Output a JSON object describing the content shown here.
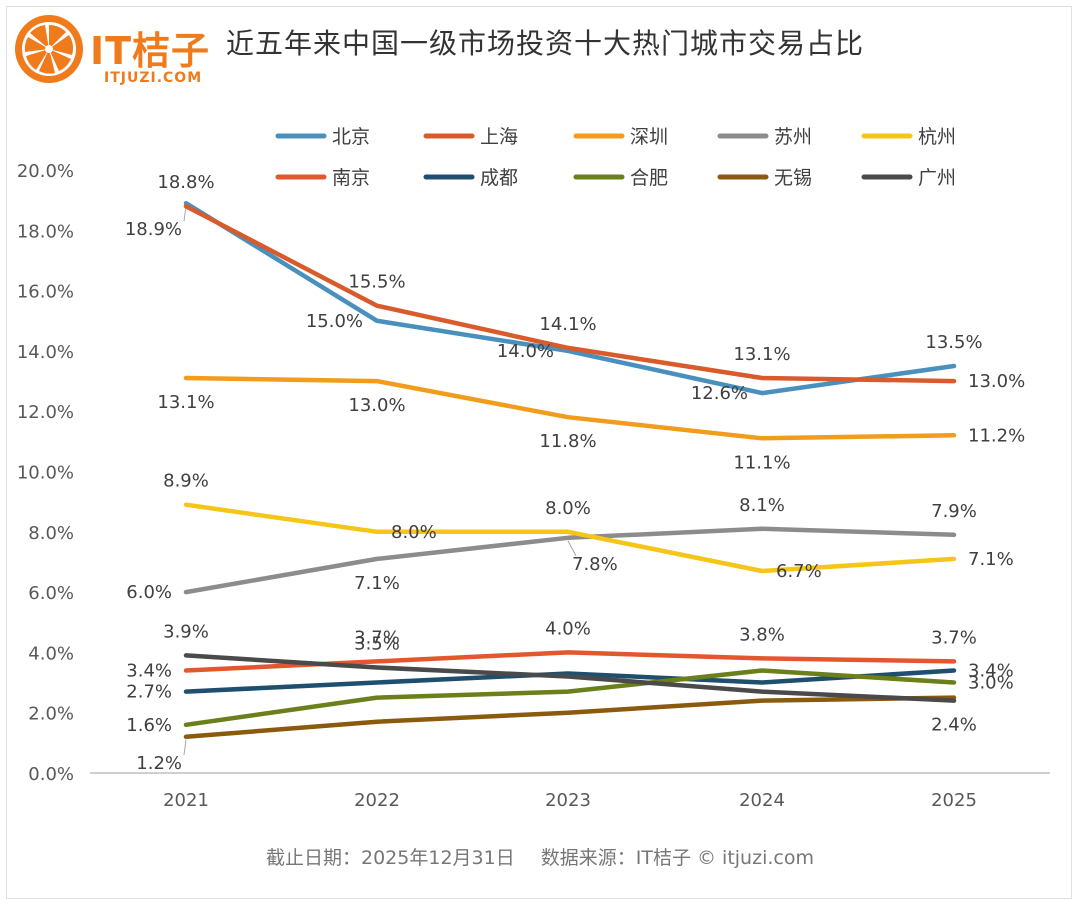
{
  "header": {
    "brand": "IT桔子",
    "domain": "ITJUZI.COM",
    "title": "近五年来中国一级市场投资十大热门城市交易占比"
  },
  "footer": {
    "cutoff": "截止日期：2025年12月31日",
    "source": "数据来源：IT桔子 © itjuzi.com"
  },
  "colors": {
    "brand": "#f07b1d",
    "grid": "#d9d9d9",
    "axis_text": "#595959"
  },
  "chart_data": {
    "type": "line",
    "title": "近五年来中国一级市场投资十大热门城市交易占比",
    "xlabel": "",
    "ylabel": "",
    "ylim": [
      0,
      20
    ],
    "yticks": [
      "0.0%",
      "2.0%",
      "4.0%",
      "6.0%",
      "8.0%",
      "10.0%",
      "12.0%",
      "14.0%",
      "16.0%",
      "18.0%",
      "20.0%"
    ],
    "x": [
      "2021",
      "2022",
      "2023",
      "2024",
      "2025"
    ],
    "legend_position": "top",
    "series": [
      {
        "name": "北京",
        "color": "#4a90bf",
        "values": [
          18.9,
          15.0,
          14.0,
          12.6,
          13.5
        ]
      },
      {
        "name": "上海",
        "color": "#d95a2b",
        "values": [
          18.8,
          15.5,
          14.1,
          13.1,
          13.0
        ]
      },
      {
        "name": "深圳",
        "color": "#f29c1b",
        "values": [
          13.1,
          13.0,
          11.8,
          11.1,
          11.2
        ]
      },
      {
        "name": "苏州",
        "color": "#8c8c8c",
        "values": [
          6.0,
          7.1,
          7.8,
          8.1,
          7.9
        ]
      },
      {
        "name": "杭州",
        "color": "#f5c518",
        "values": [
          8.9,
          8.0,
          8.0,
          6.7,
          7.1
        ]
      },
      {
        "name": "南京",
        "color": "#e4572e",
        "values": [
          3.4,
          3.7,
          4.0,
          3.8,
          3.7
        ]
      },
      {
        "name": "成都",
        "color": "#1f4e6e",
        "values": [
          2.7,
          3.0,
          3.3,
          3.0,
          3.4
        ]
      },
      {
        "name": "合肥",
        "color": "#6b7f1a",
        "values": [
          1.6,
          2.5,
          2.7,
          3.4,
          3.0
        ]
      },
      {
        "name": "无锡",
        "color": "#8b5a0e",
        "values": [
          1.2,
          1.7,
          2.0,
          2.4,
          2.5
        ]
      },
      {
        "name": "广州",
        "color": "#4a4a4a",
        "values": [
          3.9,
          3.5,
          3.2,
          2.7,
          2.4
        ]
      }
    ],
    "data_labels": [
      {
        "text": "18.8%",
        "series": "上海",
        "x": "2021",
        "pos": "above"
      },
      {
        "text": "18.9%",
        "series": "北京",
        "x": "2021",
        "pos": "below-left"
      },
      {
        "text": "15.5%",
        "series": "上海",
        "x": "2022",
        "pos": "above"
      },
      {
        "text": "15.0%",
        "series": "北京",
        "x": "2022",
        "pos": "left"
      },
      {
        "text": "14.1%",
        "series": "上海",
        "x": "2023",
        "pos": "above"
      },
      {
        "text": "14.0%",
        "series": "北京",
        "x": "2023",
        "pos": "left"
      },
      {
        "text": "13.1%",
        "series": "上海",
        "x": "2024",
        "pos": "above"
      },
      {
        "text": "12.6%",
        "series": "北京",
        "x": "2024",
        "pos": "left"
      },
      {
        "text": "13.5%",
        "series": "北京",
        "x": "2025",
        "pos": "above"
      },
      {
        "text": "13.0%",
        "series": "上海",
        "x": "2025",
        "pos": "right"
      },
      {
        "text": "13.1%",
        "series": "深圳",
        "x": "2021",
        "pos": "below"
      },
      {
        "text": "13.0%",
        "series": "深圳",
        "x": "2022",
        "pos": "below"
      },
      {
        "text": "11.8%",
        "series": "深圳",
        "x": "2023",
        "pos": "below"
      },
      {
        "text": "11.1%",
        "series": "深圳",
        "x": "2024",
        "pos": "below"
      },
      {
        "text": "11.2%",
        "series": "深圳",
        "x": "2025",
        "pos": "right"
      },
      {
        "text": "8.9%",
        "series": "杭州",
        "x": "2021",
        "pos": "above"
      },
      {
        "text": "8.0%",
        "series": "杭州",
        "x": "2022",
        "pos": "right"
      },
      {
        "text": "8.0%",
        "series": "杭州",
        "x": "2023",
        "pos": "above"
      },
      {
        "text": "6.7%",
        "series": "杭州",
        "x": "2024",
        "pos": "right"
      },
      {
        "text": "7.1%",
        "series": "杭州",
        "x": "2025",
        "pos": "right"
      },
      {
        "text": "6.0%",
        "series": "苏州",
        "x": "2021",
        "pos": "left"
      },
      {
        "text": "7.1%",
        "series": "苏州",
        "x": "2022",
        "pos": "below"
      },
      {
        "text": "7.8%",
        "series": "苏州",
        "x": "2023",
        "pos": "below-right"
      },
      {
        "text": "8.1%",
        "series": "苏州",
        "x": "2024",
        "pos": "above"
      },
      {
        "text": "7.9%",
        "series": "苏州",
        "x": "2025",
        "pos": "above"
      },
      {
        "text": "3.9%",
        "series": "广州",
        "x": "2021",
        "pos": "above"
      },
      {
        "text": "3.4%",
        "series": "南京",
        "x": "2021",
        "pos": "left"
      },
      {
        "text": "2.7%",
        "series": "成都",
        "x": "2021",
        "pos": "left"
      },
      {
        "text": "1.6%",
        "series": "合肥",
        "x": "2021",
        "pos": "left"
      },
      {
        "text": "1.2%",
        "series": "无锡",
        "x": "2021",
        "pos": "below-left"
      },
      {
        "text": "3.5%",
        "series": "广州",
        "x": "2022",
        "pos": "above"
      },
      {
        "text": "3.7%",
        "series": "南京",
        "x": "2022",
        "pos": "above"
      },
      {
        "text": "4.0%",
        "series": "南京",
        "x": "2023",
        "pos": "above"
      },
      {
        "text": "3.8%",
        "series": "南京",
        "x": "2024",
        "pos": "above"
      },
      {
        "text": "3.7%",
        "series": "南京",
        "x": "2025",
        "pos": "above"
      },
      {
        "text": "3.4%",
        "series": "成都",
        "x": "2025",
        "pos": "right"
      },
      {
        "text": "3.0%",
        "series": "合肥",
        "x": "2025",
        "pos": "right"
      },
      {
        "text": "2.4%",
        "series": "广州",
        "x": "2025",
        "pos": "below"
      }
    ]
  }
}
